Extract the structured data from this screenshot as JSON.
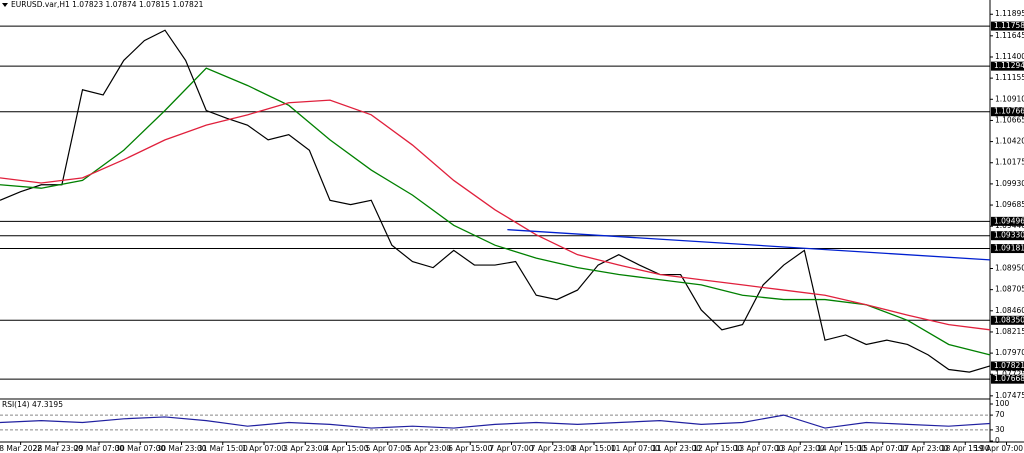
{
  "chart_data": [
    {
      "type": "line",
      "title": "EURUSD.var,H1 1.07823 1.07874 1.07815 1.07821",
      "xlim": [
        0,
        240
      ],
      "ylim": [
        1.0745,
        1.1206
      ],
      "yticks": [
        1.11895,
        1.11645,
        {
          "value": 1.114,
          "label": "1.11400"
        },
        1.11155,
        {
          "value": 1.1091,
          "label": "1.10910"
        },
        1.10665,
        {
          "value": 1.1042,
          "label": "1.10420"
        },
        1.10175,
        {
          "value": 1.0993,
          "label": "1.09930"
        },
        1.09685,
        {
          "value": 1.0944,
          "label": "1.09440"
        },
        {
          "value": 1.0895,
          "label": "1.08950"
        },
        1.08705,
        {
          "value": 1.0846,
          "label": "1.08460"
        },
        1.08215,
        {
          "value": 1.0797,
          "label": "1.07970"
        },
        1.07725,
        1.07475
      ],
      "xticks": [
        {
          "value": 5,
          "label": "8 Mar 2022"
        },
        {
          "value": 14,
          "label": "28 Mar 23:00"
        },
        {
          "value": 24,
          "label": "29 Mar 07:00"
        },
        {
          "value": 34,
          "label": "30 Mar 07:00"
        },
        {
          "value": 44,
          "label": "30 Mar 23:00"
        },
        {
          "value": 54,
          "label": "31 Mar 15:00"
        },
        {
          "value": 64,
          "label": "1 Apr 07:00"
        },
        {
          "value": 74,
          "label": "3 Apr 23:00"
        },
        {
          "value": 84,
          "label": "4 Apr 15:00"
        },
        {
          "value": 94,
          "label": "5 Apr 07:00"
        },
        {
          "value": 104,
          "label": "5 Apr 23:00"
        },
        {
          "value": 114,
          "label": "6 Apr 15:00"
        },
        {
          "value": 124,
          "label": "7 Apr 07:00"
        },
        {
          "value": 134,
          "label": "7 Apr 23:00"
        },
        {
          "value": 144,
          "label": "8 Apr 15:00"
        },
        {
          "value": 154,
          "label": "11 Apr 07:00"
        },
        {
          "value": 164,
          "label": "11 Apr 23:00"
        },
        {
          "value": 174,
          "label": "12 Apr 15:00"
        },
        {
          "value": 184,
          "label": "13 Apr 07:00"
        },
        {
          "value": 194,
          "label": "13 Apr 23:00"
        },
        {
          "value": 204,
          "label": "14 Apr 15:00"
        },
        {
          "value": 214,
          "label": "15 Apr 07:00"
        },
        {
          "value": 224,
          "label": "17 Apr 23:00"
        },
        {
          "value": 234,
          "label": "18 Apr 15:00"
        },
        {
          "value": 244,
          "label": "19 Apr 07:00"
        }
      ],
      "levels": [
        1.11758,
        1.11294,
        1.10766,
        1.09496,
        {
          "value": 1.0933,
          "label": "1.09330"
        },
        1.09181,
        {
          "value": 1.0835,
          "label": "1.08350"
        },
        1.07668
      ],
      "last": 1.07821,
      "series": [
        {
          "color": "#000000",
          "x": [
            0,
            5,
            10,
            15,
            20,
            25,
            30,
            35,
            40,
            45,
            50,
            55,
            60,
            65,
            70,
            75,
            80,
            85,
            90,
            95,
            100,
            105,
            110,
            115,
            120,
            125,
            130,
            135,
            140,
            145,
            150,
            155,
            160,
            165,
            170,
            175,
            180,
            185,
            190,
            195,
            200,
            205,
            210,
            215,
            220,
            225,
            230,
            235,
            240
          ],
          "values": [
            1.0974,
            1.0984,
            1.0992,
            1.0992,
            1.1102,
            1.1096,
            1.1136,
            1.1159,
            1.1171,
            1.1136,
            1.1078,
            1.1069,
            1.1061,
            1.1044,
            1.105,
            1.1032,
            1.0974,
            1.0969,
            1.0974,
            1.0922,
            1.0903,
            1.0896,
            1.0916,
            1.0899,
            1.0899,
            1.0903,
            1.0864,
            1.0859,
            1.087,
            1.0899,
            1.0911,
            1.0899,
            1.0888,
            1.0888,
            1.0847,
            1.0824,
            1.083,
            1.0876,
            1.0899,
            1.0916,
            1.0812,
            1.0818,
            1.0807,
            1.0812,
            1.0807,
            1.0795,
            1.0778,
            1.0775,
            1.07821
          ]
        },
        {
          "color": "#008000",
          "x": [
            0,
            10,
            20,
            30,
            40,
            50,
            60,
            70,
            80,
            90,
            100,
            110,
            120,
            130,
            140,
            150,
            160,
            170,
            180,
            190,
            200,
            210,
            220,
            230,
            240
          ],
          "values": [
            1.0992,
            1.0988,
            1.0997,
            1.1032,
            1.1078,
            1.1127,
            1.1107,
            1.1084,
            1.1044,
            1.1009,
            1.098,
            1.0945,
            1.0922,
            1.0907,
            1.0896,
            1.0888,
            1.0882,
            1.0876,
            1.0864,
            1.0859,
            1.0859,
            1.0853,
            1.0835,
            1.0807,
            1.0795
          ]
        },
        {
          "color": "#e0203c",
          "x": [
            0,
            10,
            20,
            30,
            40,
            50,
            60,
            70,
            80,
            90,
            100,
            110,
            120,
            130,
            140,
            150,
            160,
            170,
            180,
            190,
            200,
            210,
            220,
            230,
            240
          ],
          "values": [
            1.1,
            1.0994,
            1.1,
            1.1021,
            1.1044,
            1.1061,
            1.1073,
            1.1087,
            1.109,
            1.1073,
            1.1038,
            1.0997,
            1.0963,
            1.0934,
            1.0911,
            1.0899,
            1.0888,
            1.0882,
            1.0876,
            1.087,
            1.0864,
            1.0853,
            1.0841,
            1.083,
            1.0824
          ]
        },
        {
          "color": "#0020d0",
          "x": [
            123,
            240
          ],
          "values": [
            1.094,
            1.0905
          ]
        }
      ]
    },
    {
      "type": "line",
      "title": "RSI(14) 47.3195",
      "xlim": [
        0,
        240
      ],
      "ylim": [
        0,
        100
      ],
      "yticks": [
        100,
        70,
        30,
        0
      ],
      "dashed": [
        70,
        30
      ],
      "series": [
        {
          "color": "#2020a0",
          "x": [
            0,
            10,
            20,
            30,
            40,
            50,
            60,
            70,
            80,
            90,
            100,
            110,
            120,
            130,
            140,
            150,
            160,
            170,
            180,
            190,
            200,
            210,
            220,
            230,
            240
          ],
          "values": [
            50,
            55,
            50,
            60,
            65,
            55,
            40,
            50,
            45,
            35,
            40,
            35,
            45,
            50,
            45,
            50,
            55,
            45,
            50,
            70,
            35,
            50,
            45,
            40,
            47.3195
          ]
        }
      ]
    }
  ]
}
